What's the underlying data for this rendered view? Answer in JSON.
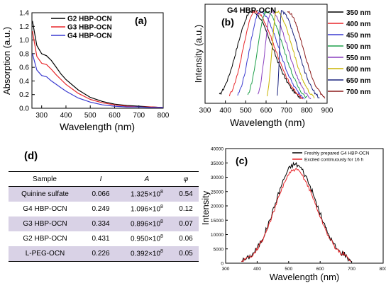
{
  "chart_data": [
    {
      "panel": "a",
      "type": "line",
      "label": "(a)",
      "xlabel": "Wavelength (nm)",
      "ylabel": "Absorption (a.u.)",
      "xlim": [
        260,
        800
      ],
      "ylim": [
        0,
        1.4
      ],
      "xticks": [
        300,
        400,
        500,
        600,
        700,
        800
      ],
      "yticks": [
        0.0,
        0.2,
        0.4,
        0.6,
        0.8,
        1.0,
        1.2,
        1.4
      ],
      "legend": "top-right",
      "series": [
        {
          "name": "G2 HBP-OCN",
          "color": "#000000",
          "x": [
            262,
            280,
            300,
            320,
            340,
            360,
            380,
            400,
            450,
            500,
            550,
            600,
            650,
            700,
            750,
            800
          ],
          "y": [
            1.28,
            0.92,
            0.8,
            0.77,
            0.7,
            0.6,
            0.5,
            0.42,
            0.27,
            0.16,
            0.1,
            0.06,
            0.04,
            0.03,
            0.02,
            0.01
          ]
        },
        {
          "name": "G3 HBP-OCN",
          "color": "#e8262a",
          "x": [
            262,
            280,
            300,
            320,
            340,
            360,
            380,
            400,
            450,
            500,
            550,
            600,
            650,
            700,
            750,
            800
          ],
          "y": [
            1.13,
            0.76,
            0.66,
            0.64,
            0.57,
            0.49,
            0.42,
            0.35,
            0.22,
            0.13,
            0.08,
            0.05,
            0.03,
            0.02,
            0.02,
            0.01
          ]
        },
        {
          "name": "G4 HBP-OCN",
          "color": "#3a3ad0",
          "x": [
            262,
            280,
            300,
            320,
            340,
            360,
            380,
            400,
            450,
            500,
            550,
            600,
            650,
            700,
            750,
            800
          ],
          "y": [
            0.8,
            0.56,
            0.48,
            0.46,
            0.4,
            0.35,
            0.3,
            0.25,
            0.15,
            0.09,
            0.05,
            0.03,
            0.02,
            0.02,
            0.01,
            0.01
          ]
        }
      ]
    },
    {
      "panel": "b",
      "type": "line",
      "label": "(b)",
      "title": "G4 HBP-OCN",
      "xlabel": "Wavelength (nm)",
      "ylabel": "Intensity (a.u.)",
      "xlim": [
        300,
        900
      ],
      "ylim": [
        0,
        1.08
      ],
      "xticks": [
        300,
        400,
        500,
        600,
        700,
        800,
        900
      ],
      "legend": "right",
      "series": [
        {
          "name": "350 nm",
          "color": "#000000",
          "peak": 530,
          "start": 370,
          "end": 775
        },
        {
          "name": "400 nm",
          "color": "#e8262a",
          "peak": 545,
          "start": 420,
          "end": 780
        },
        {
          "name": "450 nm",
          "color": "#3a3ad0",
          "peak": 570,
          "start": 460,
          "end": 790
        },
        {
          "name": "500 nm",
          "color": "#1fa04a",
          "peak": 600,
          "start": 510,
          "end": 805
        },
        {
          "name": "550 nm",
          "color": "#8a3fbf",
          "peak": 625,
          "start": 560,
          "end": 820
        },
        {
          "name": "600 nm",
          "color": "#c8b400",
          "peak": 650,
          "start": 605,
          "end": 840
        },
        {
          "name": "650 nm",
          "color": "#1a237e",
          "peak": 675,
          "start": 655,
          "end": 865
        },
        {
          "name": "700 nm",
          "color": "#8b1a1a",
          "peak": 705,
          "start": 705,
          "end": 890
        }
      ]
    },
    {
      "panel": "c",
      "type": "line",
      "label": "(c)",
      "xlabel": "Wavelength (nm)",
      "ylabel": "Intensity",
      "xlim": [
        300,
        800
      ],
      "ylim": [
        0,
        40000
      ],
      "xticks": [
        300,
        400,
        500,
        600,
        700,
        800
      ],
      "yticks": [
        0,
        5000,
        10000,
        15000,
        20000,
        25000,
        30000,
        35000,
        40000
      ],
      "legend": "top-right",
      "series": [
        {
          "name": "Freshly prepared G4 HBP-OCN",
          "color": "#000000",
          "peak_x": 520,
          "peak_y": 34500
        },
        {
          "name": "Excited continuously for 16 h",
          "color": "#e8262a",
          "peak_x": 520,
          "peak_y": 32500
        }
      ]
    }
  ],
  "table": {
    "label": "(d)",
    "headers": [
      "Sample",
      "I",
      "A",
      "φ"
    ],
    "rows": [
      {
        "sample": "Quinine sulfate",
        "i": "0.066",
        "a": "1.325×10",
        "a_exp": "8",
        "phi": "0.54"
      },
      {
        "sample": "G4 HBP-OCN",
        "i": "0.249",
        "a": "1.096×10",
        "a_exp": "8",
        "phi": "0.12"
      },
      {
        "sample": "G3 HBP-OCN",
        "i": "0.334",
        "a": "0.896×10",
        "a_exp": "8",
        "phi": "0.07"
      },
      {
        "sample": "G2 HBP-OCN",
        "i": "0.431",
        "a": "0.950×10",
        "a_exp": "8",
        "phi": "0.06"
      },
      {
        "sample": "L-PEG-OCN",
        "i": "0.226",
        "a": "0.392×10",
        "a_exp": "8",
        "phi": "0.05"
      }
    ]
  }
}
